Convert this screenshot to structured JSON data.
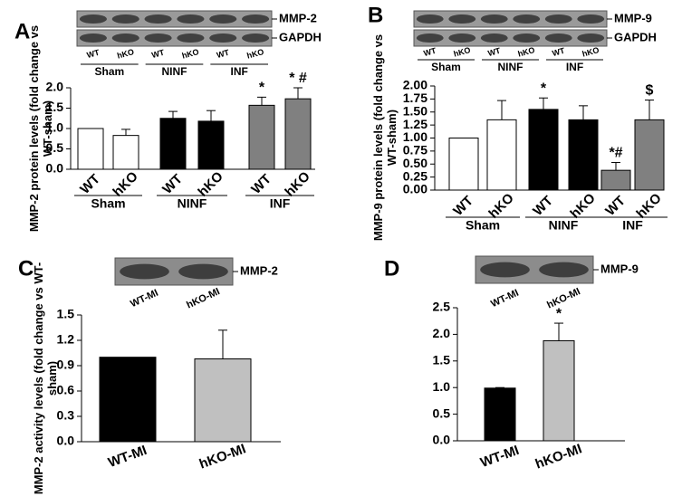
{
  "chart_data": [
    {
      "panel": "A",
      "type": "bar",
      "y_label": "MMP-2 protein levels (fold change vs WT-sham)",
      "blot": {
        "bands": [
          "MMP-2",
          "GAPDH"
        ],
        "lanes": [
          "WT",
          "hKO",
          "WT",
          "hKO",
          "WT",
          "hKO"
        ],
        "groups": [
          "Sham",
          "NINF",
          "INF"
        ]
      },
      "categories": [
        "WT",
        "hKO",
        "WT",
        "hKO",
        "WT",
        "hKO"
      ],
      "groups": [
        "Sham",
        "NINF",
        "INF"
      ],
      "values": [
        1.0,
        0.83,
        1.25,
        1.18,
        1.57,
        1.73
      ],
      "errors": [
        null,
        0.15,
        0.17,
        0.26,
        0.2,
        0.27
      ],
      "colors": [
        "#ffffff",
        "#ffffff",
        "#000000",
        "#000000",
        "#808080",
        "#808080"
      ],
      "ylim": [
        0,
        2.0
      ],
      "yticks": [
        {
          "value": 0,
          "label": "0.0"
        },
        0.5,
        {
          "value": 1,
          "label": "1.0"
        },
        1.5,
        {
          "value": 2,
          "label": "2.0"
        }
      ],
      "annotations": [
        {
          "text": "*",
          "index": 4
        },
        {
          "text": "* #",
          "index": 5
        }
      ]
    },
    {
      "panel": "B",
      "type": "bar",
      "y_label": "MMP-9 protein levels (fold change vs WT-sham)",
      "blot": {
        "bands": [
          "MMP-9",
          "GAPDH"
        ],
        "lanes": [
          "WT",
          "hKO",
          "WT",
          "hKO",
          "WT",
          "hKO"
        ],
        "groups": [
          "Sham",
          "NINF",
          "INF"
        ]
      },
      "categories": [
        "WT",
        "hKO",
        "WT",
        "hKO",
        "WT",
        "hKO"
      ],
      "groups": [
        "Sham",
        "NINF",
        "INF"
      ],
      "values": [
        1.0,
        1.35,
        1.55,
        1.35,
        0.38,
        1.35
      ],
      "errors": [
        null,
        0.37,
        0.22,
        0.27,
        0.15,
        0.38
      ],
      "colors": [
        "#ffffff",
        "#ffffff",
        "#000000",
        "#000000",
        "#808080",
        "#808080"
      ],
      "ylim": [
        0,
        2.0
      ],
      "yticks": [
        {
          "value": 0,
          "label": "0.00"
        },
        0.25,
        {
          "value": 0.5,
          "label": "0.50"
        },
        0.75,
        {
          "value": 1,
          "label": "1.00"
        },
        1.25,
        {
          "value": 1.5,
          "label": "1.50"
        },
        1.75,
        {
          "value": 2,
          "label": "2.00"
        }
      ],
      "annotations": [
        {
          "text": "*",
          "index": 2
        },
        {
          "text": "*#",
          "index": 4
        },
        {
          "text": "$",
          "index": 5
        }
      ]
    },
    {
      "panel": "C",
      "type": "bar",
      "y_label": "MMP-2 activity levels (fold change vs WT-sham)",
      "blot": {
        "bands": [
          "MMP-2"
        ],
        "lanes": [
          "WT-MI",
          "hKO-MI"
        ]
      },
      "categories": [
        "WT-MI",
        "hKO-MI"
      ],
      "values": [
        1.0,
        0.98
      ],
      "errors": [
        null,
        0.34
      ],
      "colors": [
        "#000000",
        "#c0c0c0"
      ],
      "ylim": [
        0,
        1.5
      ],
      "yticks": [
        {
          "value": 0,
          "label": "0.0"
        },
        0.3,
        0.6,
        0.9,
        1.2,
        1.5
      ],
      "annotations": []
    },
    {
      "panel": "D",
      "type": "bar",
      "blot": {
        "bands": [
          "MMP-9"
        ],
        "lanes": [
          "WT-MI",
          "hKO-MI"
        ]
      },
      "categories": [
        "WT-MI",
        "hKO-MI"
      ],
      "values": [
        0.99,
        1.88
      ],
      "errors": [
        0.01,
        0.33
      ],
      "colors": [
        "#000000",
        "#c0c0c0"
      ],
      "ylim": [
        0,
        2.5
      ],
      "yticks": [
        {
          "value": 0,
          "label": "0.0"
        },
        0.5,
        {
          "value": 1,
          "label": "1.0"
        },
        1.5,
        {
          "value": 2,
          "label": "2.0"
        },
        2.5
      ],
      "annotations": [
        {
          "text": "*",
          "index": 1
        }
      ]
    }
  ]
}
